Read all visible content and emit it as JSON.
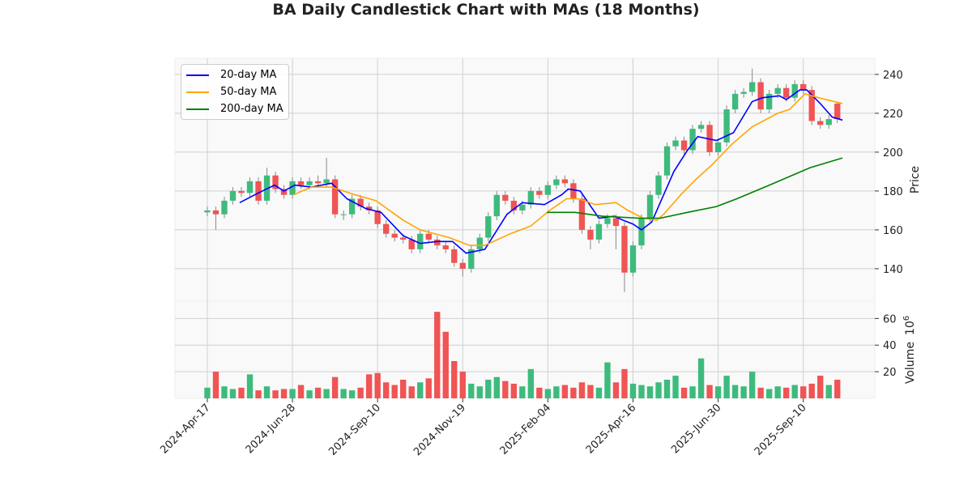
{
  "chart_data": {
    "type": "candlestick",
    "title": "BA Daily Candlestick Chart with MAs (18 Months)",
    "price_label": "Price",
    "volume_label": "Volume",
    "volume_unit": "10",
    "volume_exp": "6",
    "price_ticks": [
      140,
      160,
      180,
      200,
      220,
      240
    ],
    "price_ylim": [
      123.3,
      248.3
    ],
    "volume_ticks": [
      20,
      40,
      60
    ],
    "volume_ylim": [
      0,
      73
    ],
    "x_ticks": [
      {
        "day": 0,
        "label": "2024-Apr-17"
      },
      {
        "day": 50,
        "label": "2024-Jun-28"
      },
      {
        "day": 100,
        "label": "2024-Sep-10"
      },
      {
        "day": 150,
        "label": "2024-Nov-19"
      },
      {
        "day": 200,
        "label": "2025-Feb-04"
      },
      {
        "day": 250,
        "label": "2025-Apr-16"
      },
      {
        "day": 300,
        "label": "2025-Jun-30"
      },
      {
        "day": 350,
        "label": "2025-Sep-10"
      }
    ],
    "x_range_days": [
      -19,
      392
    ],
    "candle_step_days": 5,
    "colors": {
      "up": "#3dbb7d",
      "down": "#f05454",
      "wick": "#888888",
      "ma20": "#0000ff",
      "ma50": "#ffa500",
      "ma200": "#008000"
    },
    "closes": [
      170,
      168,
      175,
      180,
      179,
      185,
      175,
      188,
      181,
      178,
      185,
      183,
      185,
      184,
      186,
      168,
      168,
      176,
      172,
      170,
      163,
      158,
      156,
      155,
      150,
      158,
      155,
      152,
      150,
      143,
      140,
      150,
      156,
      167,
      178,
      175,
      170,
      173,
      180,
      178,
      183,
      186,
      184,
      176,
      160,
      155,
      163,
      166,
      162,
      138,
      152,
      166,
      178,
      188,
      203,
      206,
      201,
      212,
      214,
      200,
      205,
      222,
      230,
      231,
      236,
      222,
      230,
      233,
      228,
      235,
      232,
      216,
      214,
      217,
      217
    ],
    "opens": [
      169,
      170,
      168,
      175,
      180,
      179,
      185,
      175,
      188,
      181,
      178,
      185,
      183,
      185,
      184,
      186,
      168,
      168,
      176,
      172,
      170,
      163,
      158,
      156,
      155,
      150,
      158,
      155,
      152,
      150,
      143,
      140,
      150,
      156,
      167,
      178,
      175,
      170,
      173,
      180,
      178,
      183,
      186,
      184,
      176,
      160,
      155,
      163,
      166,
      162,
      138,
      152,
      166,
      178,
      188,
      203,
      206,
      201,
      212,
      214,
      200,
      205,
      222,
      230,
      231,
      236,
      222,
      230,
      233,
      228,
      235,
      232,
      216,
      214,
      225
    ],
    "highs": [
      172,
      172,
      177,
      182,
      182,
      187,
      187,
      192,
      190,
      183,
      187,
      187,
      187,
      188,
      197,
      188,
      170,
      178,
      178,
      174,
      172,
      165,
      160,
      158,
      157,
      160,
      160,
      157,
      154,
      152,
      145,
      152,
      158,
      169,
      180,
      180,
      177,
      175,
      182,
      182,
      185,
      188,
      188,
      186,
      178,
      162,
      165,
      168,
      168,
      164,
      154,
      168,
      180,
      190,
      205,
      208,
      208,
      214,
      216,
      216,
      207,
      224,
      232,
      233,
      243,
      238,
      232,
      235,
      235,
      237,
      237,
      234,
      218,
      219,
      226
    ],
    "lows": [
      167,
      160,
      166,
      173,
      177,
      177,
      173,
      173,
      179,
      176,
      176,
      181,
      181,
      182,
      182,
      166,
      165,
      166,
      170,
      168,
      161,
      156,
      154,
      153,
      148,
      148,
      153,
      150,
      148,
      141,
      136,
      138,
      148,
      154,
      165,
      173,
      168,
      168,
      171,
      176,
      176,
      181,
      182,
      174,
      158,
      150,
      153,
      161,
      150,
      128,
      136,
      150,
      164,
      176,
      186,
      201,
      199,
      199,
      210,
      198,
      198,
      203,
      220,
      228,
      229,
      220,
      220,
      228,
      226,
      226,
      230,
      214,
      212,
      212,
      215
    ],
    "volumes": [
      8,
      20,
      9,
      7,
      8,
      18,
      6,
      9,
      6,
      7,
      7,
      10,
      6,
      8,
      7,
      16,
      7,
      6,
      8,
      18,
      19,
      12,
      10,
      14,
      9,
      12,
      15,
      65,
      50,
      28,
      20,
      11,
      9,
      14,
      16,
      13,
      11,
      9,
      22,
      8,
      7,
      9,
      10,
      8,
      12,
      10,
      8,
      27,
      12,
      22,
      11,
      10,
      9,
      12,
      14,
      17,
      8,
      9,
      30,
      10,
      9,
      17,
      10,
      9,
      20,
      8,
      7,
      9,
      8,
      10,
      9,
      11,
      17,
      10,
      14
    ],
    "series": [
      {
        "name": "20-day MA",
        "key": "ma20",
        "points": [
          [
            19,
            174
          ],
          [
            30,
            179
          ],
          [
            39.5,
            183
          ],
          [
            45,
            180
          ],
          [
            51.4,
            183
          ],
          [
            61,
            182
          ],
          [
            73,
            184
          ],
          [
            82,
            176
          ],
          [
            93,
            171
          ],
          [
            102,
            169
          ],
          [
            115,
            157
          ],
          [
            125,
            153
          ],
          [
            135,
            154
          ],
          [
            144,
            154
          ],
          [
            152,
            148
          ],
          [
            163,
            150
          ],
          [
            176,
            168
          ],
          [
            185,
            174
          ],
          [
            198,
            173
          ],
          [
            208,
            178
          ],
          [
            212,
            181
          ],
          [
            219,
            180
          ],
          [
            230,
            166
          ],
          [
            239,
            167
          ],
          [
            244,
            165
          ],
          [
            250,
            163
          ],
          [
            255,
            160
          ],
          [
            261,
            164
          ],
          [
            274,
            190
          ],
          [
            282,
            201
          ],
          [
            288,
            208
          ],
          [
            299,
            206
          ],
          [
            309,
            210
          ],
          [
            320,
            226
          ],
          [
            326,
            228
          ],
          [
            336,
            229
          ],
          [
            340,
            227
          ],
          [
            348,
            232
          ],
          [
            352,
            232
          ],
          [
            360,
            225
          ],
          [
            367,
            218
          ],
          [
            373,
            216.5
          ]
        ]
      },
      {
        "name": "50-day MA",
        "key": "ma50",
        "points": [
          [
            50.5,
            178
          ],
          [
            61,
            182
          ],
          [
            73,
            182
          ],
          [
            87,
            178
          ],
          [
            99,
            175
          ],
          [
            115,
            165
          ],
          [
            125,
            160
          ],
          [
            142,
            156
          ],
          [
            154,
            152
          ],
          [
            163,
            152
          ],
          [
            178,
            158
          ],
          [
            190,
            162
          ],
          [
            201,
            170
          ],
          [
            211,
            176
          ],
          [
            218,
            176
          ],
          [
            228,
            173
          ],
          [
            240,
            174
          ],
          [
            247,
            170
          ],
          [
            256,
            166
          ],
          [
            264,
            165
          ],
          [
            268,
            168
          ],
          [
            278,
            178
          ],
          [
            287,
            186
          ],
          [
            297,
            194
          ],
          [
            308,
            204
          ],
          [
            320,
            213
          ],
          [
            335,
            220
          ],
          [
            342,
            222
          ],
          [
            351,
            230
          ],
          [
            359,
            228
          ],
          [
            373,
            225
          ]
        ]
      },
      {
        "name": "200-day MA",
        "key": "ma200",
        "points": [
          [
            199.5,
            169
          ],
          [
            216,
            169
          ],
          [
            232,
            167
          ],
          [
            254,
            166
          ],
          [
            266,
            166
          ],
          [
            282,
            169
          ],
          [
            299,
            172
          ],
          [
            311,
            176
          ],
          [
            330,
            183
          ],
          [
            354,
            192
          ],
          [
            373,
            197
          ]
        ]
      }
    ]
  }
}
